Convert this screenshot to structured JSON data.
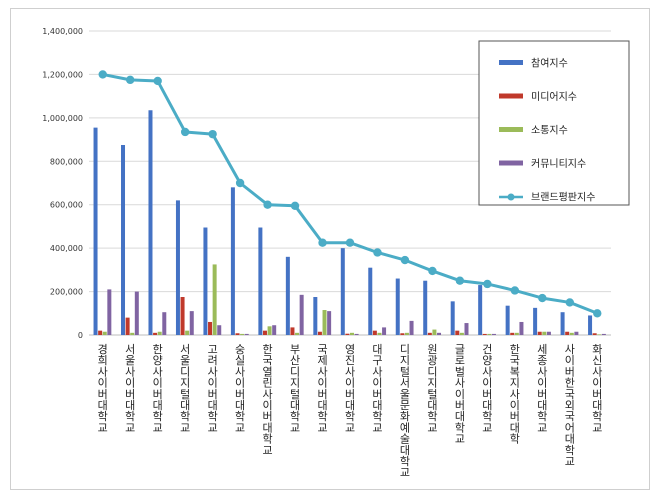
{
  "chart_data": {
    "type": "bar",
    "title": "",
    "xlabel": "",
    "ylabel": "",
    "ylim": [
      0,
      1400000
    ],
    "ytick_step": 200000,
    "grid": true,
    "legend_position": "top-right",
    "categories": [
      "경희사이버대학교",
      "서울사이버대학교",
      "한양사이버대학교",
      "서울디지털대학교",
      "고려사이버대학교",
      "숭실사이버대학교",
      "한국열린사이버대학교",
      "부산디지털대학교",
      "국제사이버대학교",
      "영진사이버대학교",
      "대구사이버대학교",
      "디지털서울문화예술대학교",
      "원광디지털대학교",
      "글로벌사이버대학교",
      "건양사이버대학교",
      "한국복지사이버대학",
      "세종사이버대학교",
      "사이버한국외국어대학교",
      "화신사이버대학교"
    ],
    "series": [
      {
        "name": "참여지수",
        "kind": "bar",
        "color": "#4472C4",
        "values": [
          955000,
          875000,
          1035000,
          620000,
          495000,
          680000,
          495000,
          360000,
          175000,
          400000,
          310000,
          260000,
          250000,
          155000,
          230000,
          135000,
          125000,
          105000,
          90000
        ]
      },
      {
        "name": "미디어지수",
        "kind": "bar",
        "color": "#C0392B",
        "values": [
          20000,
          80000,
          10000,
          175000,
          60000,
          8000,
          20000,
          35000,
          15000,
          6000,
          20000,
          8000,
          10000,
          20000,
          5000,
          10000,
          15000,
          15000,
          8000
        ]
      },
      {
        "name": "소통지수",
        "kind": "bar",
        "color": "#9BBB59",
        "values": [
          15000,
          10000,
          15000,
          20000,
          325000,
          5000,
          40000,
          10000,
          115000,
          10000,
          10000,
          10000,
          25000,
          10000,
          5000,
          10000,
          15000,
          10000,
          3000
        ]
      },
      {
        "name": "커뮤니티지수",
        "kind": "bar",
        "color": "#8064A2",
        "values": [
          210000,
          200000,
          105000,
          110000,
          45000,
          5000,
          45000,
          185000,
          110000,
          5000,
          35000,
          65000,
          10000,
          55000,
          5000,
          60000,
          15000,
          15000,
          5000
        ]
      },
      {
        "name": "브랜드평판지수",
        "kind": "line",
        "color": "#4BACC6",
        "values": [
          1200000,
          1175000,
          1170000,
          935000,
          925000,
          700000,
          600000,
          595000,
          425000,
          425000,
          380000,
          345000,
          295000,
          250000,
          235000,
          205000,
          170000,
          150000,
          100000
        ]
      }
    ]
  }
}
